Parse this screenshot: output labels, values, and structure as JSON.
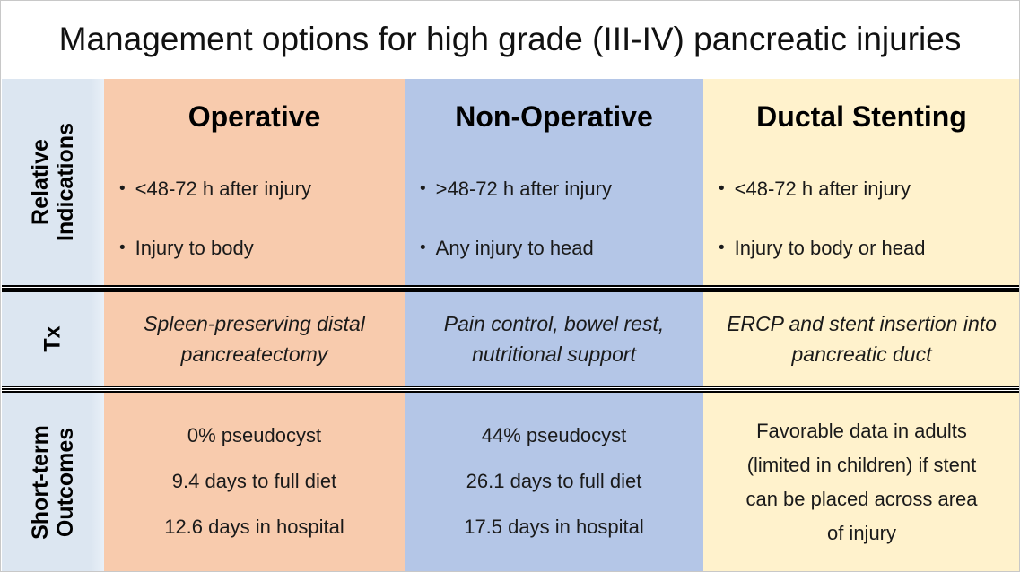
{
  "title": "Management options for high grade (III-IV) pancreatic injuries",
  "colors": {
    "row_header_bg": "#dce6f1",
    "operative_bg": "#f8cbad",
    "non_operative_bg": "#b4c6e7",
    "ductal_stenting_bg": "#fff2cc",
    "separator_line": "#000000",
    "text": "#1a1a1a"
  },
  "row_headers": {
    "indications": [
      "Relative",
      "Indications"
    ],
    "tx": "Tx",
    "outcomes": [
      "Short-term",
      "Outcomes"
    ]
  },
  "columns": [
    {
      "id": "operative",
      "header": "Operative",
      "indications": [
        "<48-72 h after injury",
        "Injury to body"
      ],
      "tx": "Spleen-preserving distal pancreatectomy",
      "outcomes": [
        "0% pseudocyst",
        "9.4 days to full diet",
        "12.6 days in hospital"
      ]
    },
    {
      "id": "non-operative",
      "header": "Non-Operative",
      "indications": [
        ">48-72 h after injury",
        "Any injury to head"
      ],
      "tx": "Pain control, bowel rest, nutritional support",
      "outcomes": [
        "44% pseudocyst",
        "26.1 days to full diet",
        "17.5 days in hospital"
      ]
    },
    {
      "id": "ductal-stenting",
      "header": "Ductal Stenting",
      "indications": [
        "<48-72 h after injury",
        "Injury to body or head"
      ],
      "tx": "ERCP and stent insertion into pancreatic duct",
      "outcomes": [
        "Favorable data in adults (limited in children) if stent can be placed across area of injury"
      ]
    }
  ]
}
